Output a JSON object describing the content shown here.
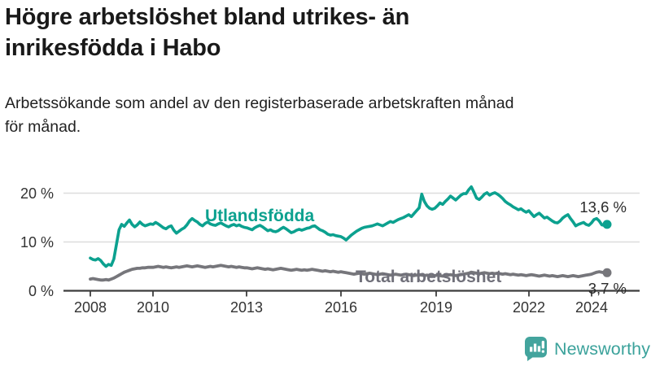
{
  "header": {
    "title": "Högre arbetslöshet bland utrikes- än inrikesfödda i Habo",
    "title_lines": [
      "Högre arbetslöshet bland utrikes- än",
      "inrikesfödda i Habo"
    ],
    "subtitle": "Arbetssökande som andel av den registerbaserade arbetskraften månad för månad.",
    "subtitle_lines": [
      "Arbetssökande som andel av den registerbaserade arbetskraften månad",
      "för månad."
    ]
  },
  "chart_data": {
    "type": "line",
    "title": "Högre arbetslöshet bland utrikes- än inrikesfödda i Habo",
    "xlabel": "",
    "ylabel": "Arbetssökande som andel av den registerbaserade arbetskraften",
    "x_unit": "month",
    "x_start": 2008.0,
    "x_end": 2024.5,
    "ylim": [
      0,
      22
    ],
    "grid": true,
    "legend_position": "inline-labels",
    "y_axis": [
      {
        "label": "20 %",
        "value": 20
      },
      {
        "label": "10 %",
        "value": 10
      },
      {
        "label": "0 %",
        "value": 0
      }
    ],
    "x_ticks": [
      {
        "label": "2008",
        "year": 2008
      },
      {
        "label": "2010",
        "year": 2010
      },
      {
        "label": "2013",
        "year": 2013
      },
      {
        "label": "2016",
        "year": 2016
      },
      {
        "label": "2019",
        "year": 2019
      },
      {
        "label": "2022",
        "year": 2022
      },
      {
        "label": "2024",
        "year": 2024
      }
    ],
    "series": [
      {
        "name": "Utlandsfödda",
        "color": "#0ca18f",
        "end_label": "13,6 %",
        "end_value": 13.6,
        "values": [
          6.7,
          6.4,
          6.3,
          6.6,
          6.2,
          5.5,
          5.0,
          5.4,
          5.2,
          6.5,
          9.5,
          12.5,
          13.6,
          13.2,
          13.9,
          14.5,
          13.6,
          13.1,
          13.5,
          14.1,
          13.6,
          13.3,
          13.5,
          13.7,
          13.6,
          14.0,
          13.7,
          13.3,
          12.9,
          12.7,
          13.1,
          13.3,
          12.4,
          11.8,
          12.2,
          12.6,
          12.9,
          13.5,
          14.3,
          14.8,
          14.4,
          14.1,
          13.6,
          13.3,
          13.8,
          14.1,
          13.7,
          13.5,
          13.4,
          13.7,
          13.9,
          13.6,
          13.3,
          13.1,
          13.4,
          13.6,
          13.3,
          13.5,
          13.2,
          13.0,
          12.9,
          12.7,
          12.5,
          12.9,
          13.2,
          13.4,
          13.1,
          12.7,
          12.3,
          12.5,
          12.2,
          12.1,
          12.3,
          12.7,
          13.0,
          12.7,
          12.3,
          11.9,
          12.1,
          12.4,
          12.6,
          12.4,
          12.6,
          12.8,
          12.9,
          13.2,
          13.3,
          12.9,
          12.5,
          12.3,
          12.0,
          11.6,
          11.4,
          11.5,
          11.3,
          11.2,
          11.1,
          10.8,
          10.4,
          10.9,
          11.4,
          11.8,
          12.2,
          12.5,
          12.8,
          13.0,
          13.1,
          13.2,
          13.3,
          13.5,
          13.7,
          13.5,
          13.3,
          13.6,
          13.9,
          14.2,
          14.0,
          14.3,
          14.6,
          14.8,
          15.0,
          15.3,
          15.6,
          15.2,
          15.8,
          16.4,
          17.0,
          19.8,
          18.3,
          17.4,
          16.9,
          16.7,
          16.9,
          17.4,
          18.0,
          17.7,
          18.3,
          18.8,
          19.4,
          19.0,
          18.6,
          19.1,
          19.6,
          19.9,
          19.9,
          20.7,
          21.3,
          20.2,
          19.0,
          18.7,
          19.2,
          19.8,
          20.1,
          19.6,
          19.9,
          20.1,
          19.8,
          19.4,
          18.9,
          18.3,
          17.9,
          17.6,
          17.2,
          16.9,
          16.6,
          16.8,
          16.4,
          16.1,
          16.4,
          15.8,
          15.2,
          15.6,
          15.9,
          15.4,
          14.9,
          15.1,
          14.7,
          14.3,
          14.0,
          13.9,
          14.3,
          14.9,
          15.3,
          15.6,
          14.8,
          14.1,
          13.3,
          13.6,
          13.8,
          14.0,
          13.6,
          13.4,
          13.9,
          14.6,
          14.8,
          14.3,
          13.5,
          13.4,
          13.6
        ]
      },
      {
        "name": "Total arbetslöshet",
        "color": "#76767b",
        "end_label": "3,7 %",
        "end_value": 3.7,
        "values": [
          2.4,
          2.5,
          2.4,
          2.3,
          2.2,
          2.2,
          2.3,
          2.2,
          2.4,
          2.6,
          2.9,
          3.2,
          3.5,
          3.8,
          4.0,
          4.2,
          4.4,
          4.5,
          4.6,
          4.6,
          4.7,
          4.7,
          4.8,
          4.8,
          4.8,
          4.9,
          5.0,
          4.9,
          4.8,
          4.9,
          4.8,
          4.7,
          4.8,
          4.9,
          4.8,
          4.9,
          5.0,
          5.1,
          5.0,
          4.9,
          5.0,
          5.1,
          5.0,
          4.9,
          4.8,
          4.9,
          5.0,
          4.9,
          5.0,
          5.1,
          5.2,
          5.1,
          5.0,
          4.9,
          5.0,
          4.9,
          4.8,
          4.9,
          4.8,
          4.7,
          4.7,
          4.6,
          4.5,
          4.6,
          4.7,
          4.6,
          4.5,
          4.4,
          4.5,
          4.4,
          4.3,
          4.4,
          4.5,
          4.6,
          4.5,
          4.4,
          4.3,
          4.2,
          4.3,
          4.4,
          4.3,
          4.2,
          4.3,
          4.2,
          4.3,
          4.4,
          4.3,
          4.2,
          4.1,
          4.0,
          4.1,
          4.0,
          3.9,
          4.0,
          3.9,
          3.8,
          3.9,
          3.8,
          3.7,
          3.6,
          3.5,
          3.4,
          3.5,
          3.6,
          3.5,
          3.4,
          3.5,
          3.6,
          3.5,
          3.4,
          3.3,
          3.4,
          3.5,
          3.4,
          3.3,
          3.2,
          3.3,
          3.4,
          3.3,
          3.2,
          3.3,
          3.4,
          3.3,
          3.2,
          3.1,
          3.2,
          3.3,
          3.2,
          3.1,
          3.2,
          3.1,
          3.0,
          3.1,
          3.2,
          3.1,
          3.0,
          3.1,
          3.2,
          3.3,
          3.2,
          3.1,
          3.2,
          3.3,
          3.4,
          3.5,
          3.6,
          3.8,
          3.7,
          3.6,
          3.5,
          3.6,
          3.7,
          3.6,
          3.5,
          3.6,
          3.5,
          3.6,
          3.5,
          3.4,
          3.5,
          3.4,
          3.3,
          3.4,
          3.3,
          3.2,
          3.3,
          3.2,
          3.1,
          3.2,
          3.3,
          3.2,
          3.1,
          3.0,
          3.1,
          3.2,
          3.1,
          3.0,
          3.1,
          3.0,
          2.9,
          3.0,
          3.1,
          3.0,
          2.9,
          3.0,
          3.1,
          3.0,
          2.9,
          3.0,
          3.1,
          3.2,
          3.3,
          3.4,
          3.6,
          3.8,
          3.9,
          3.8,
          3.7,
          3.7
        ]
      }
    ]
  },
  "colors": {
    "accent_teal": "#0ca18f",
    "series_gray": "#76767b",
    "grid": "#dddddd",
    "axis": "#3c3c3c",
    "text_dark": "#191919",
    "logo_teal": "#3ba29b"
  },
  "footer": {
    "brand": "Newsworthy",
    "logo_icon": "bar-chart-speech-bubble"
  }
}
